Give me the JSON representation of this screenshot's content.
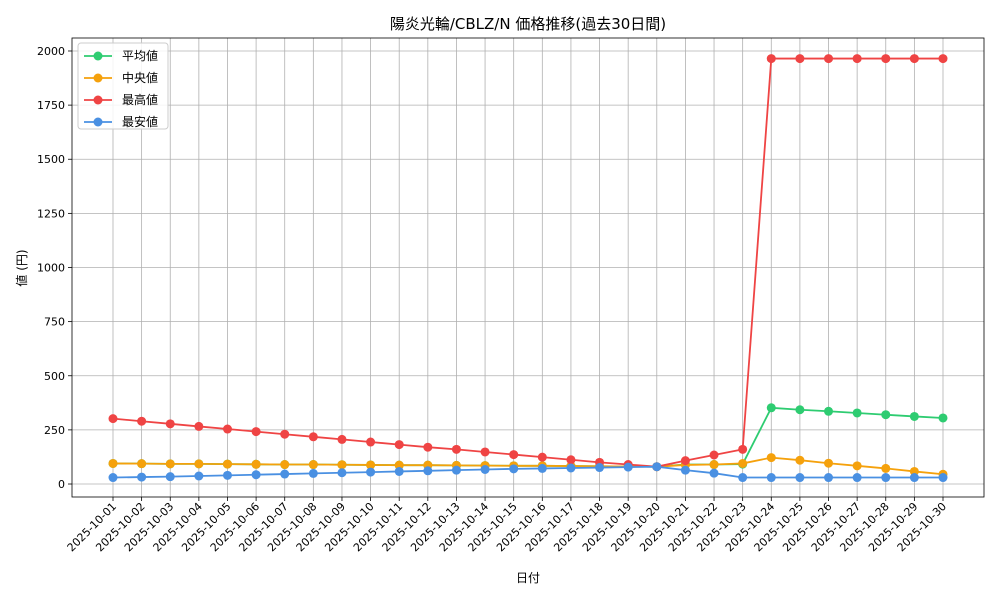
{
  "chart_data": {
    "type": "line",
    "title": "陽炎光輪/CBLZ/N 価格推移(過去30日間)",
    "xlabel": "日付",
    "ylabel": "値 (円)",
    "ylim": [
      -60,
      2060
    ],
    "yticks": [
      0,
      250,
      500,
      750,
      1000,
      1250,
      1500,
      1750,
      2000
    ],
    "grid": true,
    "legend_position": "top-left",
    "categories": [
      "2025-10-01",
      "2025-10-02",
      "2025-10-03",
      "2025-10-04",
      "2025-10-05",
      "2025-10-06",
      "2025-10-07",
      "2025-10-08",
      "2025-10-09",
      "2025-10-10",
      "2025-10-11",
      "2025-10-12",
      "2025-10-13",
      "2025-10-14",
      "2025-10-15",
      "2025-10-16",
      "2025-10-17",
      "2025-10-18",
      "2025-10-19",
      "2025-10-20",
      "2025-10-21",
      "2025-10-22",
      "2025-10-23",
      "2025-10-24",
      "2025-10-25",
      "2025-10-26",
      "2025-10-27",
      "2025-10-28",
      "2025-10-29",
      "2025-10-30"
    ],
    "series": [
      {
        "name": "平均値",
        "color": "#2ecc71",
        "values": [
          95,
          94,
          93,
          93,
          92,
          91,
          90,
          90,
          89,
          88,
          87,
          87,
          86,
          85,
          84,
          84,
          83,
          82,
          81,
          80,
          90,
          90,
          92,
          352,
          343,
          336,
          328,
          320,
          312,
          305
        ]
      },
      {
        "name": "中央値",
        "color": "#f5a10c",
        "values": [
          95,
          94,
          93,
          93,
          92,
          91,
          90,
          90,
          89,
          88,
          87,
          87,
          86,
          85,
          84,
          84,
          83,
          82,
          81,
          80,
          88,
          90,
          95,
          122,
          110,
          96,
          84,
          72,
          58,
          45
        ]
      },
      {
        "name": "最高値",
        "color": "#ef4444",
        "values": [
          302,
          290,
          278,
          266,
          254,
          242,
          230,
          218,
          206,
          194,
          182,
          170,
          160,
          148,
          136,
          124,
          112,
          100,
          90,
          80,
          108,
          134,
          160,
          1965,
          1965,
          1965,
          1965,
          1965,
          1965,
          1965
        ]
      },
      {
        "name": "最安値",
        "color": "#4a90e2",
        "values": [
          30,
          32,
          34,
          37,
          40,
          43,
          46,
          49,
          52,
          55,
          58,
          61,
          64,
          67,
          70,
          72,
          74,
          76,
          78,
          80,
          64,
          50,
          30,
          30,
          30,
          30,
          30,
          30,
          30,
          30
        ]
      }
    ]
  }
}
